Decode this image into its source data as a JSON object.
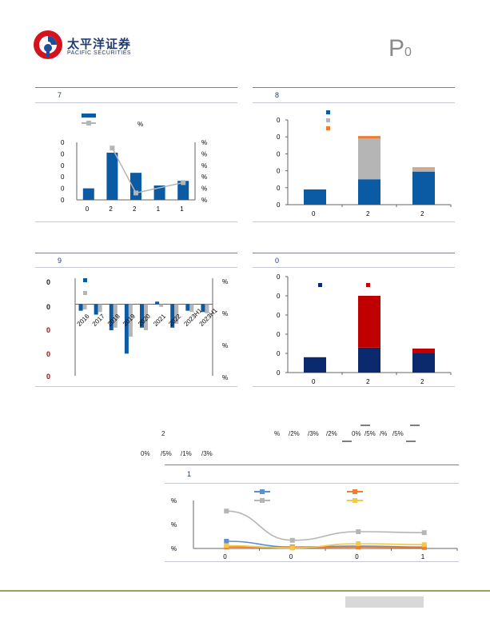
{
  "header": {
    "company_cn": "太平洋证券",
    "company_en": "PACIFIC SECURITIES",
    "page_mark": "P",
    "page_sub": "0"
  },
  "figures": {
    "fig7": {
      "label": "7"
    },
    "fig8": {
      "label": "8"
    },
    "fig9": {
      "label": "9"
    },
    "fig10": {
      "label": "0"
    },
    "fig11": {
      "label": "1"
    }
  },
  "chart_data": [
    {
      "id": "fig7",
      "type": "bar",
      "axis_note": "%",
      "left_ticks": [
        "0",
        "0",
        "0",
        "0",
        "0",
        "0"
      ],
      "right_ticks": [
        "%",
        "%",
        "%",
        "%",
        "%",
        "%"
      ],
      "categories": [
        "0",
        "2",
        "2",
        "1",
        "1"
      ],
      "values": [
        20,
        82,
        47,
        25,
        33
      ],
      "line_values": [
        null,
        90,
        12,
        null,
        30
      ],
      "ylim": [
        0,
        100
      ],
      "colors": {
        "bar": "#0b5aa4",
        "line": "#b5b5b5"
      }
    },
    {
      "id": "fig8",
      "type": "bar",
      "stacked": true,
      "left_ticks": [
        "0",
        "0",
        "0",
        "0",
        "0",
        "0"
      ],
      "categories": [
        "0",
        "2",
        "2"
      ],
      "series": [
        {
          "values": [
            18,
            30,
            39
          ],
          "color": "#0b5aa4"
        },
        {
          "values": [
            0,
            48,
            4
          ],
          "color": "#b5b5b5"
        },
        {
          "values": [
            0,
            3,
            1
          ],
          "color": "#ed7d31"
        }
      ],
      "ylim": [
        0,
        100
      ]
    },
    {
      "id": "fig9",
      "type": "bar",
      "left_ticks": [
        "0",
        "0",
        "0",
        "0",
        "0"
      ],
      "right_ticks": [
        "%",
        "%",
        "%",
        "%",
        "%"
      ],
      "categories": [
        "2016",
        "2017",
        "2018",
        "2019",
        "2020",
        "2021",
        "2022",
        "2023H1",
        "2023H1"
      ],
      "series": [
        {
          "values": [
            -5,
            -8,
            -20,
            -38,
            -18,
            2,
            -18,
            -5,
            -6
          ],
          "color": "#0b5aa4"
        },
        {
          "values": [
            -4,
            -6,
            -18,
            -25,
            -20,
            -2,
            -15,
            -6,
            -7
          ],
          "color": "#b5b5b5"
        }
      ],
      "ylim": [
        -55,
        20
      ],
      "left_tick_colors": [
        "#222",
        "#222",
        "#c00000",
        "#c00000",
        "#c00000"
      ]
    },
    {
      "id": "fig10",
      "type": "bar",
      "stacked": true,
      "left_ticks": [
        "0",
        "0",
        "0",
        "0",
        "0",
        "0"
      ],
      "categories": [
        "0",
        "2",
        "2"
      ],
      "series": [
        {
          "values": [
            16,
            26,
            20
          ],
          "color": "#0b2a6e"
        },
        {
          "values": [
            0,
            54,
            5
          ],
          "color": "#c00000"
        }
      ],
      "ylim": [
        0,
        100
      ]
    },
    {
      "id": "fig11",
      "type": "line",
      "left_ticks": [
        "%",
        "%",
        "%"
      ],
      "categories": [
        "0",
        "0",
        "0",
        "1"
      ],
      "series": [
        {
          "values": [
            15,
            3,
            5,
            3
          ],
          "color": "#5b8fd3"
        },
        {
          "values": [
            3,
            2,
            3,
            2
          ],
          "color": "#ed7d31"
        },
        {
          "values": [
            78,
            17,
            35,
            33
          ],
          "color": "#b5b5b5"
        },
        {
          "values": [
            6,
            1,
            10,
            8
          ],
          "color": "#f2c94c"
        }
      ],
      "ylim": [
        0,
        100
      ]
    }
  ],
  "text_fragments": {
    "row1_a": "2",
    "row1_b": "%",
    "row1_c": "/2%",
    "row1_d": "/3%",
    "row1_e": "/2%",
    "row1_f": "0%",
    "row1_g": "/5%",
    "row1_h": "/%",
    "row1_i": "/5%",
    "row2_a": "0%",
    "row2_b": "/5%",
    "row2_c": "/1%",
    "row2_d": "/3%"
  }
}
